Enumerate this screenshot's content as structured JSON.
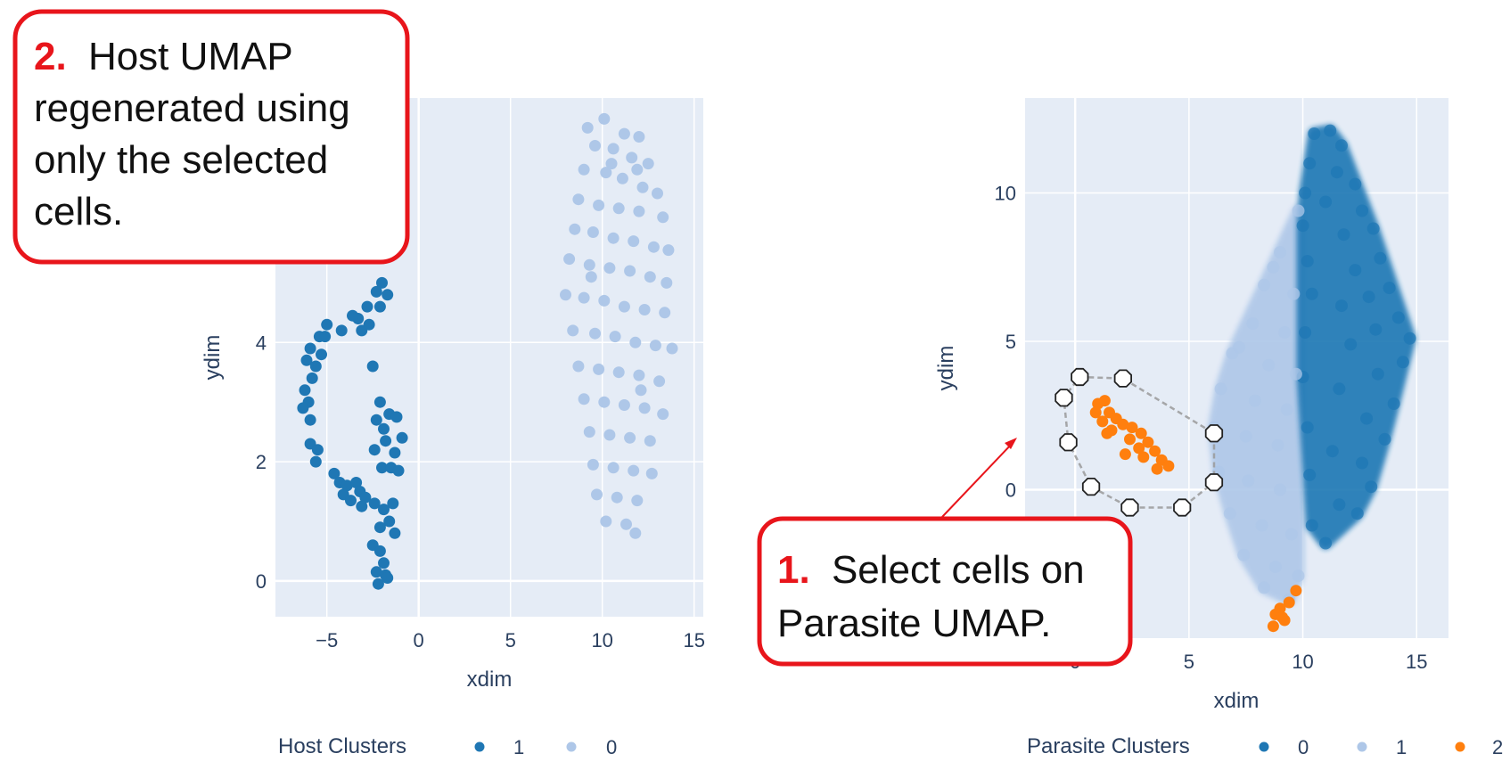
{
  "colors": {
    "plot_bg": "#e5ecf6",
    "grid": "#ffffff",
    "cluster_dark": "#1f77b4",
    "cluster_light": "#aec7e8",
    "cluster_orange": "#ff7f0e",
    "callout_border": "#e8151b",
    "callout_number": "#e8151b",
    "text": "#2a3f5f"
  },
  "callouts": {
    "step2": {
      "number": "2.",
      "lines": [
        "Host UMAP",
        "regenerated using",
        "only the selected",
        "cells."
      ]
    },
    "step1": {
      "number": "1.",
      "lines": [
        "Select cells on",
        "Parasite UMAP."
      ]
    }
  },
  "chart_data": [
    {
      "type": "scatter",
      "xlabel": "xdim",
      "ylabel": "ydim",
      "xlim": [
        -7.8,
        15.5
      ],
      "ylim": [
        -0.6,
        8.1
      ],
      "xticks": [
        "-5",
        "0",
        "5",
        "10",
        "15"
      ],
      "yticks": [
        "0",
        "2",
        "4"
      ],
      "legend": {
        "title": "Host Clusters",
        "entries": [
          "1",
          "0"
        ],
        "position": "bottom"
      },
      "series": [
        {
          "name": "1",
          "color": "dark",
          "points": [
            [
              -2.0,
              5.0
            ],
            [
              -2.3,
              4.85
            ],
            [
              -1.7,
              4.8
            ],
            [
              -2.1,
              4.6
            ],
            [
              -2.8,
              4.6
            ],
            [
              -3.3,
              4.4
            ],
            [
              -3.1,
              4.2
            ],
            [
              -2.7,
              4.3
            ],
            [
              -4.2,
              4.2
            ],
            [
              -5.0,
              4.3
            ],
            [
              -5.4,
              4.1
            ],
            [
              -5.9,
              3.9
            ],
            [
              -6.1,
              3.7
            ],
            [
              -5.3,
              3.8
            ],
            [
              -5.6,
              3.6
            ],
            [
              -5.8,
              3.4
            ],
            [
              -6.2,
              3.2
            ],
            [
              -6.0,
              3.0
            ],
            [
              -6.3,
              2.9
            ],
            [
              -5.9,
              2.7
            ],
            [
              -2.5,
              3.6
            ],
            [
              -2.1,
              3.0
            ],
            [
              -1.6,
              2.8
            ],
            [
              -2.3,
              2.7
            ],
            [
              -1.2,
              2.75
            ],
            [
              -0.9,
              2.4
            ],
            [
              -1.8,
              2.35
            ],
            [
              -1.3,
              2.15
            ],
            [
              -2.4,
              2.2
            ],
            [
              -2.0,
              1.9
            ],
            [
              -1.5,
              1.9
            ],
            [
              -1.1,
              1.85
            ],
            [
              -5.9,
              2.3
            ],
            [
              -5.5,
              2.2
            ],
            [
              -5.6,
              2.0
            ],
            [
              -4.6,
              1.8
            ],
            [
              -4.3,
              1.65
            ],
            [
              -3.9,
              1.6
            ],
            [
              -3.4,
              1.65
            ],
            [
              -3.2,
              1.5
            ],
            [
              -2.9,
              1.4
            ],
            [
              -4.1,
              1.45
            ],
            [
              -3.7,
              1.35
            ],
            [
              -3.1,
              1.25
            ],
            [
              -2.4,
              1.3
            ],
            [
              -1.9,
              1.2
            ],
            [
              -1.4,
              1.3
            ],
            [
              -1.6,
              1.0
            ],
            [
              -2.1,
              0.9
            ],
            [
              -1.3,
              0.8
            ],
            [
              -2.5,
              0.6
            ],
            [
              -2.1,
              0.5
            ],
            [
              -1.9,
              0.3
            ],
            [
              -2.3,
              0.15
            ],
            [
              -1.8,
              0.1
            ],
            [
              -2.2,
              -0.05
            ],
            [
              -1.7,
              0.05
            ],
            [
              -5.1,
              4.1
            ],
            [
              -3.6,
              4.45
            ],
            [
              -1.9,
              2.55
            ]
          ]
        },
        {
          "name": "0",
          "color": "light",
          "points": [
            [
              9.2,
              7.6
            ],
            [
              10.1,
              7.75
            ],
            [
              11.2,
              7.5
            ],
            [
              12.0,
              7.45
            ],
            [
              9.6,
              7.3
            ],
            [
              10.6,
              7.25
            ],
            [
              11.6,
              7.1
            ],
            [
              12.5,
              7.0
            ],
            [
              9.0,
              6.9
            ],
            [
              10.2,
              6.85
            ],
            [
              11.1,
              6.75
            ],
            [
              12.2,
              6.6
            ],
            [
              13.0,
              6.5
            ],
            [
              8.7,
              6.4
            ],
            [
              9.8,
              6.3
            ],
            [
              10.9,
              6.25
            ],
            [
              12.0,
              6.2
            ],
            [
              13.3,
              6.1
            ],
            [
              8.5,
              5.9
            ],
            [
              9.5,
              5.85
            ],
            [
              10.6,
              5.75
            ],
            [
              11.7,
              5.7
            ],
            [
              12.8,
              5.6
            ],
            [
              13.6,
              5.55
            ],
            [
              8.2,
              5.4
            ],
            [
              9.3,
              5.3
            ],
            [
              10.4,
              5.25
            ],
            [
              11.5,
              5.2
            ],
            [
              12.6,
              5.1
            ],
            [
              13.5,
              5.0
            ],
            [
              8.0,
              4.8
            ],
            [
              9.0,
              4.75
            ],
            [
              10.1,
              4.7
            ],
            [
              11.2,
              4.6
            ],
            [
              12.3,
              4.55
            ],
            [
              13.4,
              4.5
            ],
            [
              8.4,
              4.2
            ],
            [
              9.6,
              4.15
            ],
            [
              10.7,
              4.1
            ],
            [
              11.8,
              4.0
            ],
            [
              12.9,
              3.95
            ],
            [
              13.8,
              3.9
            ],
            [
              8.7,
              3.6
            ],
            [
              9.8,
              3.55
            ],
            [
              10.9,
              3.5
            ],
            [
              12.0,
              3.45
            ],
            [
              13.1,
              3.35
            ],
            [
              9.0,
              3.05
            ],
            [
              10.1,
              3.0
            ],
            [
              11.2,
              2.95
            ],
            [
              12.3,
              2.9
            ],
            [
              13.3,
              2.8
            ],
            [
              9.3,
              2.5
            ],
            [
              10.4,
              2.45
            ],
            [
              11.5,
              2.4
            ],
            [
              12.6,
              2.35
            ],
            [
              9.5,
              1.95
            ],
            [
              10.6,
              1.9
            ],
            [
              11.7,
              1.85
            ],
            [
              12.7,
              1.8
            ],
            [
              9.7,
              1.45
            ],
            [
              10.8,
              1.4
            ],
            [
              11.9,
              1.35
            ],
            [
              10.2,
              1.0
            ],
            [
              11.3,
              0.95
            ],
            [
              11.8,
              0.8
            ],
            [
              10.5,
              7.0
            ],
            [
              11.9,
              6.9
            ],
            [
              9.4,
              5.1
            ],
            [
              12.1,
              3.2
            ]
          ]
        }
      ]
    },
    {
      "type": "scatter",
      "xlabel": "xdim",
      "ylabel": "ydim",
      "xlim": [
        -2.2,
        16.4
      ],
      "ylim": [
        -5.0,
        13.2
      ],
      "xticks": [
        "0",
        "5",
        "10",
        "15"
      ],
      "yticks": [
        "0",
        "5",
        "10"
      ],
      "legend": {
        "title": "Parasite Clusters",
        "entries": [
          "0",
          "1",
          "2"
        ],
        "position": "bottom"
      },
      "series": [
        {
          "name": "0",
          "color": "dark",
          "points": [
            [
              10.5,
              12.0
            ],
            [
              11.2,
              12.1
            ],
            [
              11.7,
              11.6
            ],
            [
              10.3,
              11.0
            ],
            [
              11.5,
              10.7
            ],
            [
              12.3,
              10.3
            ],
            [
              10.1,
              10.0
            ],
            [
              11.0,
              9.7
            ],
            [
              12.6,
              9.4
            ],
            [
              13.1,
              8.8
            ],
            [
              10.0,
              8.9
            ],
            [
              11.8,
              8.6
            ],
            [
              13.4,
              7.8
            ],
            [
              10.2,
              7.7
            ],
            [
              12.3,
              7.4
            ],
            [
              13.8,
              6.8
            ],
            [
              10.4,
              6.6
            ],
            [
              11.7,
              6.2
            ],
            [
              14.2,
              5.8
            ],
            [
              13.2,
              5.4
            ],
            [
              10.1,
              5.3
            ],
            [
              12.1,
              4.9
            ],
            [
              14.4,
              4.3
            ],
            [
              13.3,
              3.9
            ],
            [
              10.0,
              3.8
            ],
            [
              11.6,
              3.4
            ],
            [
              14.0,
              2.9
            ],
            [
              12.8,
              2.4
            ],
            [
              10.2,
              2.1
            ],
            [
              13.6,
              1.7
            ],
            [
              11.3,
              1.3
            ],
            [
              12.6,
              0.9
            ],
            [
              10.3,
              0.5
            ],
            [
              13.0,
              0.1
            ],
            [
              11.6,
              -0.5
            ],
            [
              10.4,
              -1.2
            ],
            [
              12.4,
              -0.8
            ],
            [
              11.0,
              -1.8
            ],
            [
              14.7,
              5.1
            ],
            [
              12.9,
              6.5
            ]
          ]
        },
        {
          "name": "1",
          "color": "light",
          "points": [
            [
              9.8,
              9.4
            ],
            [
              9.0,
              8.0
            ],
            [
              8.3,
              6.9
            ],
            [
              9.6,
              6.6
            ],
            [
              7.8,
              5.6
            ],
            [
              9.2,
              5.3
            ],
            [
              6.9,
              4.6
            ],
            [
              8.5,
              4.2
            ],
            [
              9.7,
              3.9
            ],
            [
              6.4,
              3.4
            ],
            [
              7.9,
              3.0
            ],
            [
              9.3,
              2.7
            ],
            [
              6.1,
              2.1
            ],
            [
              7.5,
              1.8
            ],
            [
              8.9,
              1.5
            ],
            [
              6.3,
              0.6
            ],
            [
              7.6,
              0.3
            ],
            [
              9.0,
              0.0
            ],
            [
              6.8,
              -0.8
            ],
            [
              8.2,
              -1.2
            ],
            [
              9.5,
              -1.5
            ],
            [
              7.4,
              -2.2
            ],
            [
              8.8,
              -2.6
            ],
            [
              9.8,
              -2.9
            ],
            [
              8.3,
              -3.3
            ],
            [
              9.4,
              -3.7
            ],
            [
              7.2,
              4.8
            ],
            [
              8.7,
              7.5
            ]
          ]
        },
        {
          "name": "2",
          "color": "orange",
          "points": [
            [
              1.0,
              2.9
            ],
            [
              1.3,
              3.0
            ],
            [
              0.9,
              2.6
            ],
            [
              1.5,
              2.6
            ],
            [
              1.2,
              2.3
            ],
            [
              1.8,
              2.4
            ],
            [
              2.1,
              2.2
            ],
            [
              1.6,
              2.0
            ],
            [
              2.5,
              2.1
            ],
            [
              2.9,
              1.9
            ],
            [
              2.4,
              1.7
            ],
            [
              3.2,
              1.6
            ],
            [
              2.8,
              1.4
            ],
            [
              3.5,
              1.3
            ],
            [
              3.0,
              1.1
            ],
            [
              3.8,
              1.0
            ],
            [
              4.1,
              0.8
            ],
            [
              3.6,
              0.7
            ],
            [
              2.2,
              1.2
            ],
            [
              1.4,
              1.9
            ],
            [
              9.7,
              -3.4
            ],
            [
              9.4,
              -3.8
            ],
            [
              9.0,
              -4.0
            ],
            [
              8.8,
              -4.2
            ],
            [
              9.2,
              -4.4
            ],
            [
              8.7,
              -4.6
            ],
            [
              9.1,
              -4.3
            ]
          ]
        }
      ],
      "selection_lasso": [
        [
          0.2,
          3.8
        ],
        [
          2.1,
          3.75
        ],
        [
          6.1,
          1.9
        ],
        [
          6.1,
          0.25
        ],
        [
          4.7,
          -0.6
        ],
        [
          2.4,
          -0.6
        ],
        [
          0.7,
          0.1
        ],
        [
          -0.3,
          1.6
        ],
        [
          -0.5,
          3.1
        ]
      ]
    }
  ]
}
